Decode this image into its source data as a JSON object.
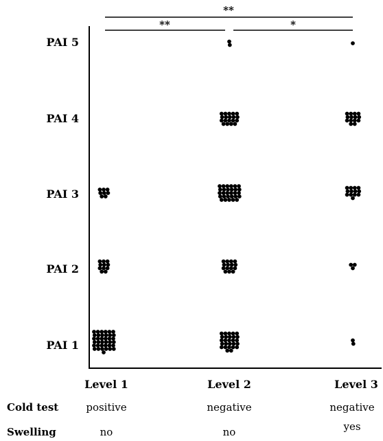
{
  "chart_data": {
    "type": "scatter",
    "subtype": "dot-plot",
    "colors": {
      "dots": "#000000",
      "axes": "#000000",
      "background": "#ffffff"
    },
    "grid": false,
    "y_categories": [
      "PAI 1",
      "PAI 2",
      "PAI 3",
      "PAI 4",
      "PAI 5"
    ],
    "x_categories": [
      "Level 1",
      "Level 2",
      "Level 3"
    ],
    "counts": [
      {
        "level": "Level 1",
        "values": [
          37,
          11,
          8,
          0,
          0
        ]
      },
      {
        "level": "Level 2",
        "values": [
          27,
          15,
          29,
          19,
          2
        ]
      },
      {
        "level": "Level 3",
        "values": [
          2,
          3,
          13,
          14,
          1
        ]
      }
    ],
    "significance": [
      {
        "from": "Level 1",
        "to": "Level 3",
        "label": "**"
      },
      {
        "from": "Level 1",
        "to": "Level 2",
        "label": "**"
      },
      {
        "from": "Level 2",
        "to": "Level 3",
        "label": "*"
      }
    ],
    "table": [
      {
        "header": "Cold test",
        "values": [
          "positive",
          "negative",
          "negative"
        ]
      },
      {
        "header": "Swelling",
        "values": [
          "no",
          "no",
          "yes"
        ]
      }
    ]
  }
}
